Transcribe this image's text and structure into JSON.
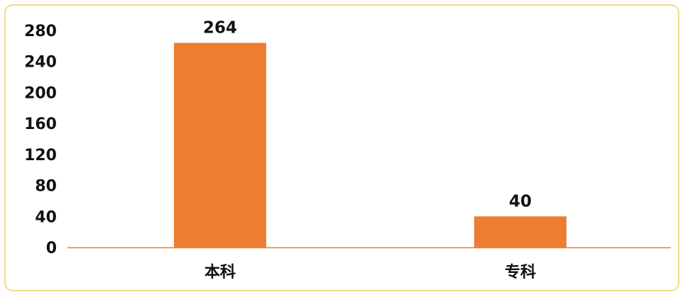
{
  "chart_data": {
    "type": "bar",
    "categories": [
      "本科",
      "专科"
    ],
    "values": [
      264,
      40
    ],
    "data_labels": [
      "264",
      "40"
    ],
    "title": "",
    "xlabel": "",
    "ylabel": "",
    "ylim": [
      0,
      280
    ],
    "yticks": [
      "0",
      "40",
      "80",
      "120",
      "160",
      "200",
      "240",
      "280"
    ],
    "grid": false,
    "legend": "none",
    "bar_color": "#ed7d31",
    "axis_color": "#ed7d31"
  }
}
